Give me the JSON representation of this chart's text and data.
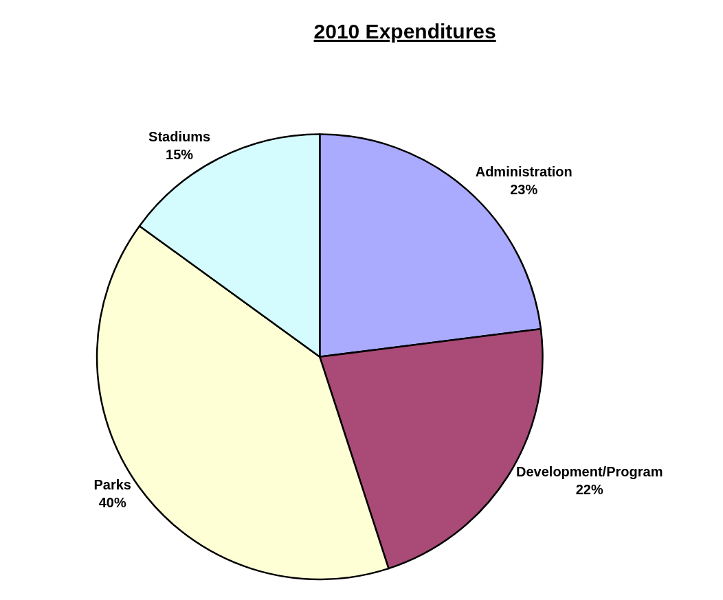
{
  "chart_data": {
    "type": "pie",
    "title": "2010 Expenditures",
    "categories": [
      "Administration",
      "Development/Program",
      "Parks",
      "Stadiums"
    ],
    "values": [
      23,
      22,
      40,
      15
    ],
    "value_labels": [
      "23%",
      "22%",
      "40%",
      "15%"
    ],
    "colors": [
      "#aaaaff",
      "#aa4a77",
      "#ffffd6",
      "#d4fcff"
    ],
    "legend": false
  }
}
